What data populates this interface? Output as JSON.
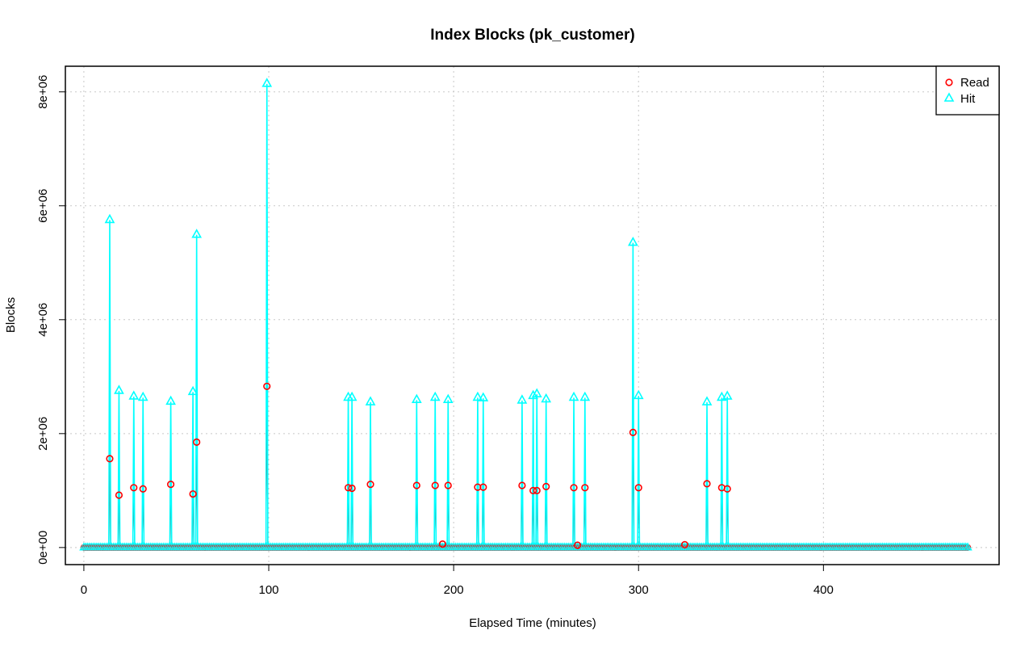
{
  "chart_data": {
    "type": "line",
    "title": "Index Blocks (pk_customer)",
    "xlabel": "Elapsed Time (minutes)",
    "ylabel": "Blocks",
    "xlim": [
      -10,
      495
    ],
    "ylim": [
      -300000,
      8450000
    ],
    "x_ticks": [
      0,
      100,
      200,
      300,
      400
    ],
    "x_tick_labels": [
      "0",
      "100",
      "200",
      "300",
      "400"
    ],
    "y_ticks": [
      0,
      2000000,
      4000000,
      6000000,
      8000000
    ],
    "y_tick_labels": [
      "0e+00",
      "2e+06",
      "4e+06",
      "6e+06",
      "8e+06"
    ],
    "grid": true,
    "legend_position": "top-right",
    "baseline_x_range": [
      0,
      478
    ],
    "series": [
      {
        "name": "Read",
        "color": "#ff0000",
        "marker": "circle",
        "points": [
          [
            14,
            1560000
          ],
          [
            19,
            920000
          ],
          [
            27,
            1050000
          ],
          [
            32,
            1030000
          ],
          [
            47,
            1110000
          ],
          [
            59,
            940000
          ],
          [
            61,
            1850000
          ],
          [
            99,
            2830000
          ],
          [
            143,
            1050000
          ],
          [
            145,
            1040000
          ],
          [
            155,
            1110000
          ],
          [
            180,
            1090000
          ],
          [
            190,
            1090000
          ],
          [
            194,
            60000
          ],
          [
            197,
            1090000
          ],
          [
            213,
            1060000
          ],
          [
            216,
            1060000
          ],
          [
            237,
            1090000
          ],
          [
            243,
            1000000
          ],
          [
            245,
            1000000
          ],
          [
            250,
            1070000
          ],
          [
            265,
            1050000
          ],
          [
            267,
            40000
          ],
          [
            271,
            1050000
          ],
          [
            297,
            2020000
          ],
          [
            300,
            1050000
          ],
          [
            325,
            50000
          ],
          [
            337,
            1120000
          ],
          [
            345,
            1050000
          ],
          [
            348,
            1030000
          ]
        ]
      },
      {
        "name": "Hit",
        "color": "#00ffff",
        "marker": "triangle",
        "points": [
          [
            14,
            5750000
          ],
          [
            19,
            2750000
          ],
          [
            27,
            2650000
          ],
          [
            32,
            2630000
          ],
          [
            47,
            2560000
          ],
          [
            59,
            2730000
          ],
          [
            61,
            5490000
          ],
          [
            99,
            8140000
          ],
          [
            143,
            2630000
          ],
          [
            145,
            2630000
          ],
          [
            155,
            2550000
          ],
          [
            180,
            2590000
          ],
          [
            190,
            2630000
          ],
          [
            197,
            2590000
          ],
          [
            213,
            2630000
          ],
          [
            216,
            2620000
          ],
          [
            237,
            2580000
          ],
          [
            243,
            2660000
          ],
          [
            245,
            2690000
          ],
          [
            250,
            2600000
          ],
          [
            265,
            2630000
          ],
          [
            271,
            2630000
          ],
          [
            297,
            5350000
          ],
          [
            300,
            2660000
          ],
          [
            337,
            2550000
          ],
          [
            345,
            2630000
          ],
          [
            348,
            2650000
          ]
        ]
      }
    ]
  }
}
